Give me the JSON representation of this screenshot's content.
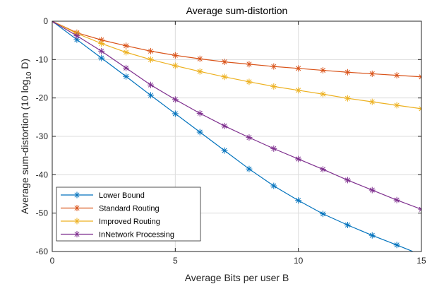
{
  "chart_data": {
    "type": "line",
    "title": "Average sum-distortion",
    "xlabel": "Average Bits per user B",
    "ylabel": {
      "prefix": "Average sum-distortion (10 log",
      "subscript": "10",
      "suffix": " D)"
    },
    "xlim": [
      0,
      15
    ],
    "ylim": [
      -60,
      0
    ],
    "xticks": [
      0,
      5,
      10,
      15
    ],
    "yticks": [
      0,
      -10,
      -20,
      -30,
      -40,
      -50,
      -60
    ],
    "grid": true,
    "legend_position": "bottom-left",
    "x": [
      0,
      1,
      2,
      3,
      4,
      5,
      6,
      7,
      8,
      9,
      10,
      11,
      12,
      13,
      14,
      15
    ],
    "series": [
      {
        "name": "Lower Bound",
        "color": "#0072BD",
        "marker": "asterisk",
        "values": [
          0,
          -4.8,
          -9.6,
          -14.4,
          -19.3,
          -24.1,
          -28.9,
          -33.7,
          -38.5,
          -42.9,
          -46.7,
          -50.2,
          -53.1,
          -55.8,
          -58.3,
          -60.9
        ]
      },
      {
        "name": "Standard Routing",
        "color": "#D95319",
        "marker": "asterisk",
        "values": [
          0,
          -3.0,
          -4.9,
          -6.4,
          -7.8,
          -8.9,
          -9.8,
          -10.6,
          -11.2,
          -11.8,
          -12.3,
          -12.8,
          -13.3,
          -13.7,
          -14.1,
          -14.5
        ]
      },
      {
        "name": "Improved Routing",
        "color": "#EDB120",
        "marker": "asterisk",
        "values": [
          0,
          -3.2,
          -5.8,
          -8.1,
          -10.0,
          -11.6,
          -13.1,
          -14.5,
          -15.8,
          -17.0,
          -18.0,
          -19.0,
          -20.1,
          -21.0,
          -21.9,
          -22.8
        ]
      },
      {
        "name": "InNetwork Processing",
        "color": "#7E2F8E",
        "marker": "asterisk",
        "values": [
          0,
          -3.8,
          -7.8,
          -12.2,
          -16.6,
          -20.4,
          -24.0,
          -27.3,
          -30.3,
          -33.2,
          -35.9,
          -38.6,
          -41.4,
          -44.0,
          -46.6,
          -49.0
        ]
      }
    ]
  }
}
